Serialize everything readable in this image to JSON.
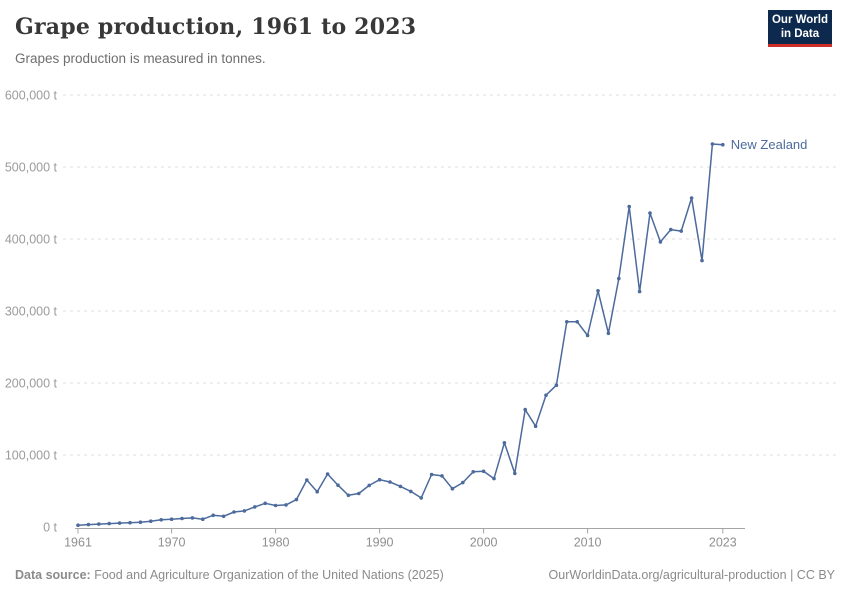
{
  "header": {
    "title": "Grape production, 1961 to 2023",
    "subtitle": "Grapes production is measured in tonnes."
  },
  "logo": {
    "line1": "Our World",
    "line2": "in Data",
    "bg": "#0d2a4e",
    "accent": "#cf2e27"
  },
  "chart_data": {
    "type": "line",
    "title": "Grape production, 1961 to 2023",
    "ylabel": "tonnes",
    "unit_suffix": " t",
    "entity": "New Zealand",
    "line_color": "#4c6a9c",
    "grid": true,
    "legend_position": "end-of-line-label",
    "xlim": [
      1961,
      2023
    ],
    "ylim": [
      0,
      600000
    ],
    "x_ticks": [
      1961,
      1970,
      1980,
      1990,
      2000,
      2010,
      2023
    ],
    "y_ticks": [
      0,
      100000,
      200000,
      300000,
      400000,
      500000,
      600000
    ],
    "x": [
      1961,
      1962,
      1963,
      1964,
      1965,
      1966,
      1967,
      1968,
      1969,
      1970,
      1971,
      1972,
      1973,
      1974,
      1975,
      1976,
      1977,
      1978,
      1979,
      1980,
      1981,
      1982,
      1983,
      1984,
      1985,
      1986,
      1987,
      1988,
      1989,
      1990,
      1991,
      1992,
      1993,
      1994,
      1995,
      1996,
      1997,
      1998,
      1999,
      2000,
      2001,
      2002,
      2003,
      2004,
      2005,
      2006,
      2007,
      2008,
      2009,
      2010,
      2011,
      2012,
      2013,
      2014,
      2015,
      2016,
      2017,
      2018,
      2019,
      2020,
      2021,
      2022,
      2023
    ],
    "values": [
      2500,
      3300,
      4000,
      4700,
      5400,
      6000,
      6600,
      8000,
      10000,
      10800,
      11800,
      12700,
      10800,
      16300,
      14900,
      20800,
      22400,
      27900,
      32900,
      29800,
      30700,
      38000,
      65300,
      49000,
      73600,
      58000,
      44000,
      46500,
      57800,
      65700,
      62500,
      56400,
      49500,
      40400,
      72900,
      71000,
      53200,
      61600,
      76600,
      77400,
      67200,
      117000,
      74500,
      163000,
      140000,
      183000,
      197000,
      285000,
      285000,
      266000,
      328000,
      269000,
      345000,
      445000,
      327000,
      436000,
      396000,
      413000,
      411000,
      457000,
      370000,
      532000,
      531000
    ]
  },
  "colors": {
    "grid": "#dcdcdc",
    "axis": "#a5a5a5",
    "tick_label": "#8f8f8f",
    "y_label": "#9b9b9b",
    "title": "#383838",
    "subtitle": "#6e6e6e",
    "footer": "#8b8b8b"
  },
  "footer": {
    "source_label": "Data source:",
    "source": "Food and Agriculture Organization of the United Nations (2025)",
    "link": "OurWorldinData.org/agricultural-production",
    "separator": " | ",
    "license": "CC BY"
  }
}
